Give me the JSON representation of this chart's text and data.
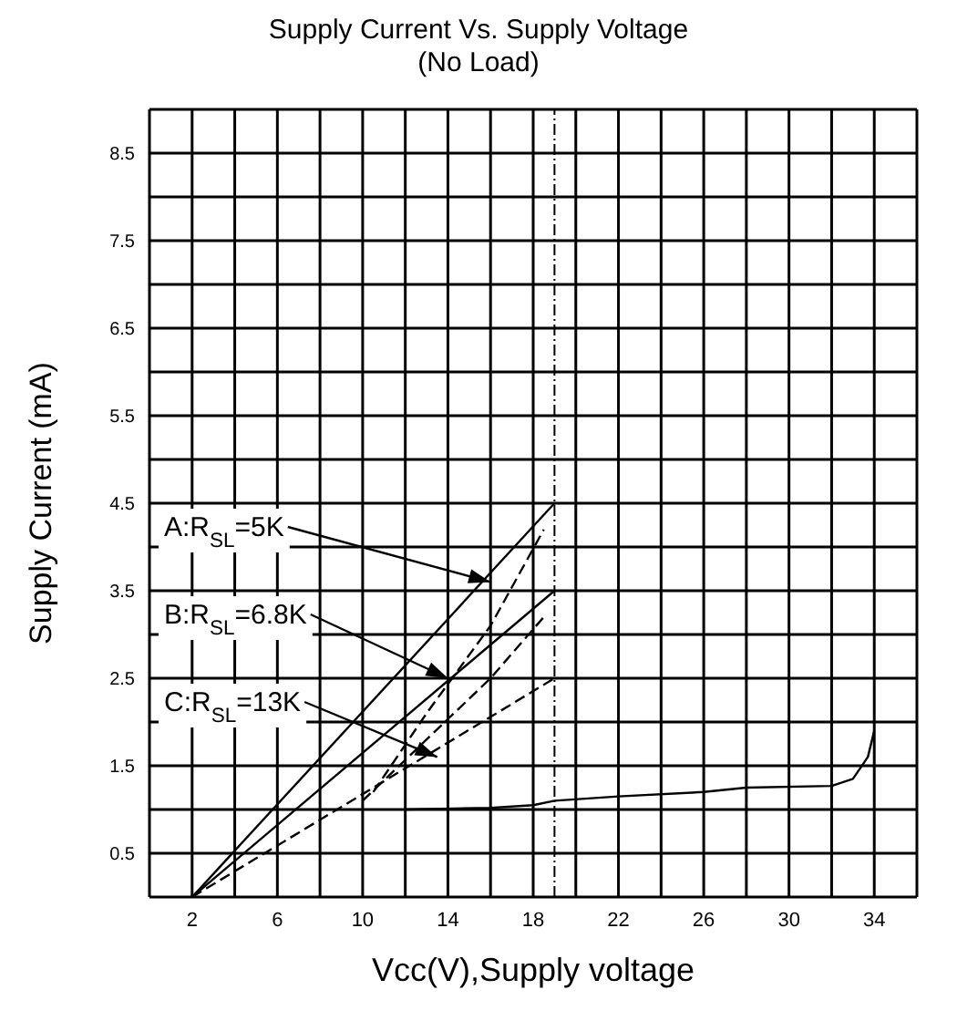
{
  "chart_data": {
    "type": "line",
    "title": "Supply Current Vs. Supply Voltage",
    "subtitle": "(No Load)",
    "xlabel": "Vcc(V),Supply voltage",
    "ylabel": "Supply Current (mA)",
    "xlim": [
      0,
      36
    ],
    "ylim": [
      0,
      9
    ],
    "xticks": [
      {
        "value": 0,
        "label": null
      },
      2,
      {
        "value": 4,
        "label": null
      },
      6,
      {
        "value": 8,
        "label": null
      },
      10,
      {
        "value": 12,
        "label": null
      },
      14,
      {
        "value": 16,
        "label": null
      },
      18,
      {
        "value": 20,
        "label": null
      },
      22,
      {
        "value": 24,
        "label": null
      },
      26,
      {
        "value": 28,
        "label": null
      },
      30,
      {
        "value": 32,
        "label": null
      },
      34,
      {
        "value": 36,
        "label": null
      }
    ],
    "yticks": [
      {
        "value": 0,
        "label": null
      },
      0.5,
      {
        "value": 1,
        "label": null
      },
      1.5,
      {
        "value": 2,
        "label": null
      },
      2.5,
      {
        "value": 3,
        "label": null
      },
      3.5,
      {
        "value": 4,
        "label": null
      },
      4.5,
      {
        "value": 5,
        "label": null
      },
      5.5,
      {
        "value": 6,
        "label": null
      },
      6.5,
      {
        "value": 7,
        "label": null
      },
      7.5,
      {
        "value": 8,
        "label": null
      },
      8.5,
      {
        "value": 9,
        "label": null
      }
    ],
    "grid": true,
    "marker": "none",
    "series": [
      {
        "color": "#000000",
        "line_style": "solid",
        "x": [
          2,
          19
        ],
        "values": [
          0,
          4.5
        ]
      },
      {
        "color": "#000000",
        "line_style": "solid",
        "x": [
          2,
          19
        ],
        "values": [
          0,
          3.5
        ]
      },
      {
        "color": "#000000",
        "line_style": "dashed",
        "x": [
          2,
          19
        ],
        "values": [
          0,
          2.5
        ]
      },
      {
        "color": "#000000",
        "line_style": "dashed",
        "x": [
          10.5,
          13,
          16,
          18.5
        ],
        "values": [
          1.2,
          2.1,
          3.1,
          4.2
        ]
      },
      {
        "color": "#000000",
        "line_style": "dashed",
        "x": [
          10,
          13,
          16,
          18.5
        ],
        "values": [
          1.1,
          1.8,
          2.5,
          3.2
        ]
      },
      {
        "color": "#000000",
        "line_style": "solid",
        "x": [
          12,
          16,
          18,
          19,
          22,
          26,
          28,
          32,
          33,
          33.7,
          34
        ],
        "values": [
          1.0,
          1.02,
          1.05,
          1.1,
          1.15,
          1.2,
          1.25,
          1.27,
          1.35,
          1.6,
          1.9
        ]
      }
    ],
    "ref_lines": [
      {
        "axis": "x",
        "value": 19,
        "color": "#000000",
        "line_style": "dashed"
      }
    ],
    "annotations": [
      {
        "text": "A:R$_{SL}$=5K",
        "x": 16,
        "y": 3.6
      },
      {
        "text": "B:R$_{SL}$=6.8K",
        "x": 14,
        "y": 2.5
      },
      {
        "text": "C:R$_{SL}$=13K",
        "x": 13.5,
        "y": 1.6
      }
    ]
  }
}
